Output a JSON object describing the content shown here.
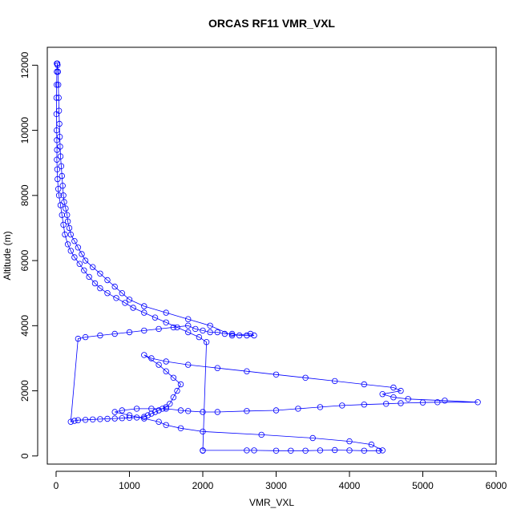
{
  "chart_data": {
    "type": "scatter",
    "title": "ORCAS RF11 VMR_VXL",
    "xlabel": "VMR_VXL",
    "ylabel": "Altitude (m)",
    "xlim": [
      -120,
      6000
    ],
    "ylim": [
      -250,
      12550
    ],
    "xticks": [
      0,
      1000,
      2000,
      3000,
      4000,
      5000,
      6000
    ],
    "yticks": [
      0,
      2000,
      4000,
      6000,
      8000,
      10000,
      12000
    ],
    "xtick_labels": [
      "0",
      "1000",
      "2000",
      "3000",
      "4000",
      "5000",
      "6000"
    ],
    "ytick_labels": [
      "0",
      "2000",
      "4000",
      "6000",
      "8000",
      "10000",
      "12000"
    ],
    "grid": false,
    "marker": "open-circle",
    "connect_points": true,
    "colors": {
      "series": "#0000ff",
      "axis": "#000000"
    },
    "series": [
      {
        "x": [
          15,
          10,
          8,
          5,
          5,
          8,
          10,
          12,
          10,
          15,
          20,
          30,
          40,
          60,
          80,
          100,
          120,
          160,
          200,
          250,
          320,
          380,
          450,
          530,
          600,
          700,
          820,
          940,
          1050,
          1200,
          1350,
          1500,
          1650,
          1800,
          1950,
          2050,
          2000,
          2000,
          2600,
          2700,
          3000,
          3200,
          3400,
          3600,
          3800,
          4000,
          4200,
          4400,
          4450,
          4300,
          4000,
          3500,
          2800,
          2000,
          1700,
          1500,
          1400,
          1200,
          1000,
          800,
          900,
          1100,
          1300,
          1500,
          1700,
          1800,
          2000,
          2200,
          2600,
          3000,
          3300,
          3600,
          3900,
          4200,
          4500,
          4700,
          5000,
          5200,
          5750,
          5300,
          4800,
          4600,
          4450,
          4700,
          4600,
          4200,
          3800,
          3400,
          3000,
          2600,
          2200,
          1800,
          1500,
          1300,
          1200,
          1400,
          1500,
          1600,
          1700,
          1650,
          1600,
          1550,
          1500,
          1450,
          1400,
          1350,
          1300,
          1250,
          1200,
          1100,
          1000,
          900,
          800,
          700,
          600,
          500,
          400,
          300,
          250,
          200,
          300,
          400,
          600,
          800,
          1000,
          1200,
          1400,
          1600,
          1800,
          1900,
          2000,
          2100,
          2200,
          2300,
          2400,
          2500,
          2600,
          2700,
          2650,
          2400,
          2100,
          1800,
          1500,
          1200,
          1000,
          900,
          800,
          700,
          600,
          500,
          400,
          350,
          300,
          250,
          200,
          180,
          160,
          150,
          130,
          110,
          100,
          90,
          80,
          70,
          60,
          55,
          50,
          45,
          40,
          35,
          30,
          25,
          20,
          15,
          10
        ],
        "y": [
          12050,
          11800,
          11400,
          11000,
          10500,
          10000,
          9700,
          9400,
          9100,
          8800,
          8500,
          8200,
          8000,
          7700,
          7400,
          7100,
          6800,
          6500,
          6300,
          6100,
          5900,
          5700,
          5500,
          5300,
          5150,
          5000,
          4850,
          4700,
          4550,
          4400,
          4250,
          4100,
          3950,
          3800,
          3650,
          3500,
          160,
          170,
          170,
          170,
          160,
          160,
          160,
          170,
          180,
          170,
          160,
          160,
          170,
          350,
          450,
          550,
          650,
          750,
          850,
          950,
          1050,
          1150,
          1250,
          1350,
          1400,
          1450,
          1450,
          1450,
          1400,
          1380,
          1350,
          1350,
          1380,
          1400,
          1450,
          1500,
          1550,
          1580,
          1600,
          1620,
          1640,
          1650,
          1650,
          1700,
          1750,
          1800,
          1900,
          2000,
          2100,
          2200,
          2300,
          2400,
          2500,
          2600,
          2700,
          2800,
          2900,
          3000,
          3100,
          2800,
          2600,
          2400,
          2200,
          2000,
          1800,
          1600,
          1500,
          1450,
          1400,
          1350,
          1300,
          1250,
          1200,
          1180,
          1170,
          1160,
          1150,
          1140,
          1130,
          1120,
          1110,
          1100,
          1080,
          1050,
          3600,
          3650,
          3700,
          3750,
          3800,
          3850,
          3900,
          3950,
          4000,
          3900,
          3850,
          3800,
          3800,
          3750,
          3750,
          3700,
          3700,
          3700,
          3750,
          3700,
          4000,
          4200,
          4400,
          4600,
          4800,
          5000,
          5200,
          5400,
          5600,
          5800,
          6000,
          6200,
          6400,
          6600,
          6800,
          7000,
          7200,
          7400,
          7600,
          7800,
          8000,
          8300,
          8600,
          8900,
          9200,
          9500,
          9800,
          10200,
          10600,
          11000,
          11400,
          11800,
          12000,
          12050,
          12050
        ]
      }
    ]
  }
}
